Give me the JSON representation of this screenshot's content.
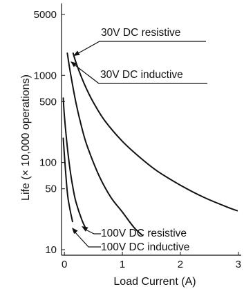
{
  "chart_data": {
    "type": "line",
    "xlabel": "Load Current (A)",
    "ylabel": "Life (× 10,000 operations)",
    "x_ticks": [
      "0",
      "1",
      "2",
      "3"
    ],
    "y_ticks": [
      "10",
      "50",
      "100",
      "500",
      "1000",
      "5000"
    ],
    "xlim": [
      -0.05,
      3.05
    ],
    "ylim": [
      10,
      5000
    ],
    "y_scale": "log",
    "grid": false,
    "series": [
      {
        "name": "30V DC resistive",
        "points": [
          [
            0.15,
            1800
          ],
          [
            0.2,
            1400
          ],
          [
            0.3,
            930
          ],
          [
            0.4,
            660
          ],
          [
            0.5,
            490
          ],
          [
            0.7,
            300
          ],
          [
            1.0,
            175
          ],
          [
            1.3,
            115
          ],
          [
            1.6,
            80
          ],
          [
            2.0,
            55
          ],
          [
            2.4,
            40
          ],
          [
            2.8,
            31
          ],
          [
            2.98,
            28
          ]
        ]
      },
      {
        "name": "30V DC inductive",
        "points": [
          [
            0.05,
            1800
          ],
          [
            0.1,
            1100
          ],
          [
            0.2,
            480
          ],
          [
            0.3,
            250
          ],
          [
            0.4,
            150
          ],
          [
            0.6,
            70
          ],
          [
            0.8,
            40
          ],
          [
            1.0,
            27
          ],
          [
            1.2,
            18
          ],
          [
            1.35,
            14.5
          ]
        ]
      },
      {
        "name": "100V DC resistive",
        "points": [
          [
            -0.02,
            550
          ],
          [
            0.0,
            340
          ],
          [
            0.05,
            150
          ],
          [
            0.1,
            80
          ],
          [
            0.15,
            50
          ],
          [
            0.2,
            35
          ],
          [
            0.3,
            22
          ],
          [
            0.37,
            17.5
          ]
        ]
      },
      {
        "name": "100V DC inductive",
        "points": [
          [
            -0.02,
            190
          ],
          [
            0.0,
            120
          ],
          [
            0.03,
            65
          ],
          [
            0.06,
            40
          ],
          [
            0.1,
            28
          ],
          [
            0.14,
            21
          ]
        ]
      }
    ],
    "annotations": [
      "30V DC resistive",
      "30V DC inductive",
      "100V DC resistive",
      "100V DC inductive"
    ]
  }
}
